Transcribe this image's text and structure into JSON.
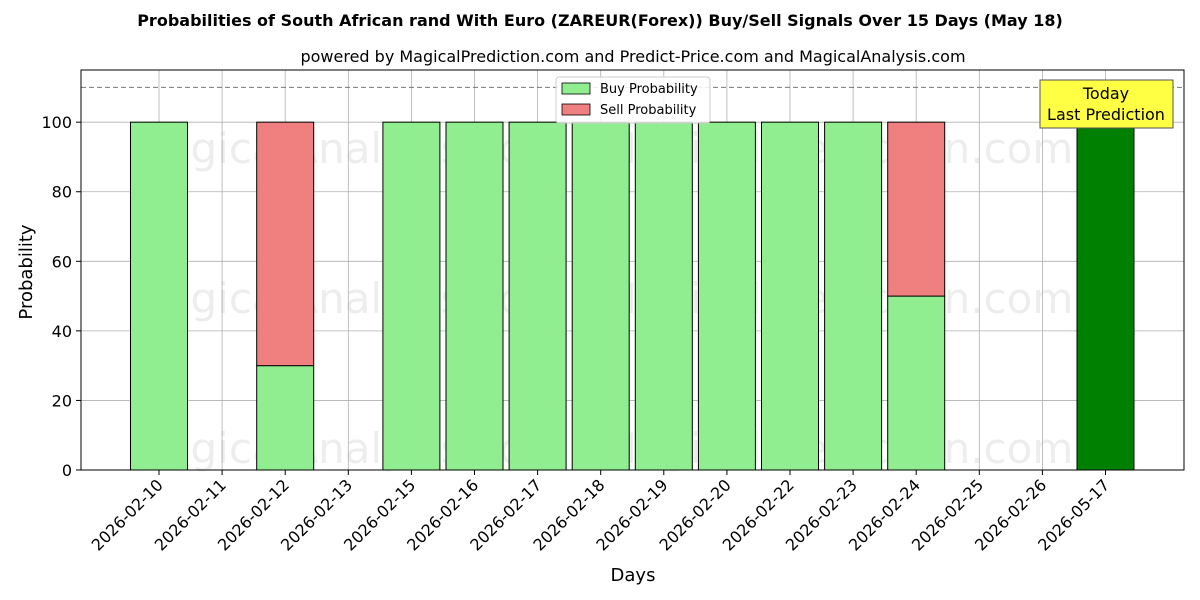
{
  "chart_data": {
    "type": "bar",
    "stacked": true,
    "title": "Probabilities of South African rand With Euro (ZAREUR(Forex)) Buy/Sell Signals Over 15 Days (May 18)",
    "subtitle": "powered by MagicalPrediction.com and Predict-Price.com and MagicalAnalysis.com",
    "xlabel": "Days",
    "ylabel": "Probability",
    "ylim": [
      0,
      115
    ],
    "yticks": [
      0,
      20,
      40,
      60,
      80,
      100
    ],
    "grid": true,
    "legend_placement": "top-center",
    "reference_line": 110,
    "categories": [
      "2026-02-10",
      "2026-02-11",
      "2026-02-12",
      "2026-02-13",
      "2026-02-15",
      "2026-02-16",
      "2026-02-17",
      "2026-02-18",
      "2026-02-19",
      "2026-02-20",
      "2026-02-22",
      "2026-02-23",
      "2026-02-24",
      "2026-02-25",
      "2026-02-26",
      "2026-05-17"
    ],
    "series": [
      {
        "name": "Buy Probability",
        "color": "#90ee90",
        "values": [
          100,
          0,
          30,
          0,
          100,
          100,
          100,
          100,
          100,
          100,
          100,
          100,
          50,
          0,
          0,
          100
        ]
      },
      {
        "name": "Sell Probability",
        "color": "#f08080",
        "values": [
          0,
          0,
          70,
          0,
          0,
          0,
          0,
          0,
          0,
          0,
          0,
          0,
          50,
          0,
          0,
          0
        ]
      }
    ],
    "highlight": {
      "category": "2026-05-17",
      "color": "#008000",
      "label_line1": "Today",
      "label_line2": "Last Prediction",
      "label_bg": "#ffff44"
    },
    "watermark": [
      "MagicalAnalysis.com",
      "MagicalPrediction.com",
      "MagicalAnalysis.com",
      "MagicalPrediction.com",
      "MagicalAnalysis.com",
      "MagicalPrediction.com"
    ]
  }
}
